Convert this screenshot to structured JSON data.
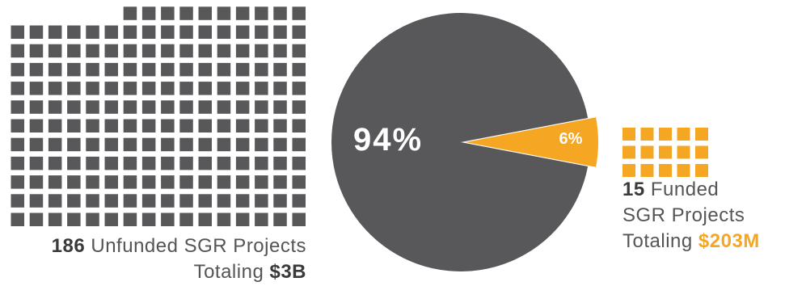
{
  "chart_data": {
    "type": "pie",
    "slices": [
      {
        "label": "94%",
        "value": 94,
        "color": "#58585a"
      },
      {
        "label": "6%",
        "value": 6,
        "color": "#f5a623"
      }
    ],
    "waffle": [
      {
        "count": 186,
        "color": "#58585a"
      },
      {
        "count": 15,
        "color": "#f5a623"
      }
    ]
  },
  "captions": {
    "unfunded": {
      "count": "186",
      "line1": "Unfunded SGR Projects",
      "line2": "Totaling",
      "amount": "$3B"
    },
    "funded": {
      "count": "15",
      "line1": "Funded",
      "line2": "SGR Projects",
      "line3": "Totaling",
      "amount": "$203M"
    }
  }
}
